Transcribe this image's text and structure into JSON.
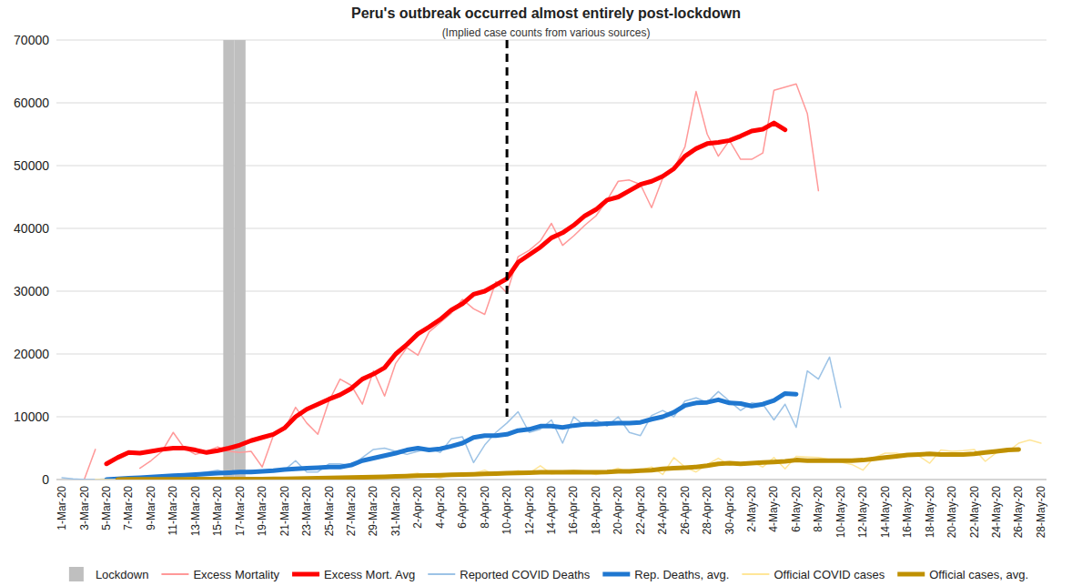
{
  "chart_data": {
    "type": "line",
    "title": "Peru's outbreak occurred almost entirely post-lockdown",
    "subtitle": "(Implied case counts from various sources)",
    "categories": [
      "1-Mar-20",
      null,
      "3-Mar-20",
      null,
      "5-Mar-20",
      null,
      "7-Mar-20",
      null,
      "9-Mar-20",
      null,
      "11-Mar-20",
      null,
      "13-Mar-20",
      null,
      "15-Mar-20",
      null,
      "17-Mar-20",
      null,
      "19-Mar-20",
      null,
      "21-Mar-20",
      null,
      "23-Mar-20",
      null,
      "25-Mar-20",
      null,
      "27-Mar-20",
      null,
      "29-Mar-20",
      null,
      "31-Mar-20",
      null,
      "2-Apr-20",
      null,
      "4-Apr-20",
      null,
      "6-Apr-20",
      null,
      "8-Apr-20",
      null,
      "10-Apr-20",
      null,
      "12-Apr-20",
      null,
      "14-Apr-20",
      null,
      "16-Apr-20",
      null,
      "18-Apr-20",
      null,
      "20-Apr-20",
      null,
      "22-Apr-20",
      null,
      "24-Apr-20",
      null,
      "26-Apr-20",
      null,
      "28-Apr-20",
      null,
      "30-Apr-20",
      null,
      "2-May-20",
      null,
      "4-May-20",
      null,
      "6-May-20",
      null,
      "8-May-20",
      null,
      "10-May-20",
      null,
      "12-May-20",
      null,
      "14-May-20",
      null,
      "16-May-20",
      null,
      "18-May-20",
      null,
      "20-May-20",
      null,
      "22-May-20",
      null,
      "24-May-20",
      null,
      "26-May-20",
      null,
      "28-May-20"
    ],
    "series": [
      {
        "name": "Lockdown",
        "type": "bar",
        "color": "#bfbfbf",
        "values": [
          null,
          null,
          null,
          null,
          null,
          null,
          null,
          null,
          null,
          null,
          null,
          null,
          null,
          null,
          null,
          70000,
          70000,
          null,
          null,
          null,
          null,
          null,
          null,
          null,
          null,
          null,
          null,
          null,
          null,
          null,
          null,
          null,
          null,
          null,
          null,
          null,
          null,
          null,
          null,
          null,
          null,
          null,
          null,
          null,
          null,
          null,
          null,
          null,
          null,
          null,
          null,
          null,
          null,
          null,
          null,
          null,
          null,
          null,
          null,
          null,
          null,
          null,
          null,
          null,
          null,
          null,
          null,
          null,
          null,
          null,
          null,
          null,
          null,
          null,
          null,
          null,
          null,
          null,
          null,
          null,
          null,
          null,
          null,
          null,
          null,
          null,
          null,
          null,
          null
        ]
      },
      {
        "name": "Excess Mortality",
        "type": "line",
        "color": "#ff9999",
        "values": [
          null,
          null,
          0,
          4800,
          null,
          null,
          null,
          1800,
          3000,
          4500,
          7500,
          5000,
          4000,
          4500,
          5200,
          4500,
          4300,
          4500,
          2000,
          7000,
          8000,
          11500,
          9000,
          7200,
          12500,
          16000,
          15000,
          12000,
          17300,
          13300,
          18500,
          21000,
          19800,
          23500,
          25000,
          26500,
          28700,
          27200,
          26300,
          31500,
          29700,
          35500,
          36500,
          38000,
          40800,
          37300,
          38800,
          40500,
          42000,
          44500,
          47500,
          47700,
          47000,
          43300,
          48000,
          49500,
          53000,
          61800,
          55000,
          51500,
          54000,
          51000,
          51000,
          52000,
          62000,
          62500,
          63000,
          58300,
          46000,
          null,
          null,
          null,
          null,
          null,
          null,
          null,
          null,
          null,
          null,
          null,
          null,
          null,
          null,
          null,
          null,
          null,
          null,
          null,
          null
        ]
      },
      {
        "name": "Excess Mort. Avg",
        "type": "line",
        "color": "#ff0000",
        "values": [
          null,
          null,
          null,
          null,
          2500,
          3500,
          4300,
          4200,
          4500,
          4800,
          5000,
          5000,
          4700,
          4300,
          4600,
          5000,
          5500,
          6200,
          6700,
          7200,
          8200,
          10000,
          11200,
          12000,
          12800,
          13500,
          14500,
          16000,
          16800,
          17800,
          20000,
          21500,
          23200,
          24300,
          25500,
          27000,
          28000,
          29500,
          30000,
          31000,
          32000,
          34600,
          35800,
          37000,
          38500,
          39300,
          40500,
          42000,
          43000,
          44500,
          45000,
          46000,
          47000,
          47500,
          48300,
          49500,
          51500,
          52700,
          53500,
          53700,
          54000,
          54700,
          55500,
          55800,
          56800,
          55700,
          null,
          null,
          null,
          null,
          null,
          null,
          null,
          null,
          null,
          null,
          null,
          null,
          null,
          null,
          null,
          null,
          null,
          null,
          null,
          null,
          null,
          null,
          null
        ]
      },
      {
        "name": "Reported COVID Deaths",
        "type": "line",
        "color": "#9dc3e6",
        "values": [
          300,
          100,
          0,
          0,
          100,
          200,
          300,
          400,
          500,
          500,
          600,
          800,
          900,
          1200,
          1500,
          1000,
          1200,
          1500,
          1300,
          1500,
          1500,
          3000,
          1200,
          1200,
          2500,
          2500,
          2200,
          3500,
          4800,
          5000,
          4500,
          4000,
          4500,
          5000,
          4300,
          6500,
          6800,
          2700,
          5500,
          7500,
          9000,
          10800,
          7500,
          8000,
          9500,
          5800,
          10000,
          8500,
          9500,
          8500,
          10000,
          7500,
          7000,
          10200,
          11000,
          10000,
          12500,
          13000,
          12300,
          14000,
          12500,
          11000,
          12200,
          12000,
          9500,
          12000,
          8300,
          17300,
          16000,
          19500,
          11500,
          null,
          null,
          null,
          null,
          null,
          null,
          null,
          null,
          null,
          null,
          null,
          null,
          null,
          null,
          null,
          null,
          null,
          null
        ]
      },
      {
        "name": "Rep. Deaths, avg.",
        "type": "line",
        "color": "#1f77d0",
        "values": [
          null,
          null,
          null,
          null,
          0,
          100,
          200,
          300,
          400,
          500,
          600,
          700,
          800,
          900,
          1000,
          1100,
          1200,
          1200,
          1300,
          1400,
          1600,
          1700,
          1800,
          1900,
          2000,
          2000,
          2300,
          3000,
          3400,
          3800,
          4200,
          4700,
          5000,
          4700,
          4900,
          5300,
          5800,
          6700,
          7000,
          7000,
          7200,
          7800,
          8000,
          8500,
          8500,
          8300,
          8600,
          8800,
          8800,
          8900,
          9000,
          9000,
          9100,
          9600,
          10000,
          10700,
          11800,
          12200,
          12300,
          12700,
          12200,
          12100,
          11700,
          12000,
          12600,
          13700,
          13600,
          null,
          null,
          null,
          null,
          null,
          null,
          null,
          null,
          null,
          null,
          null,
          null,
          null,
          null,
          null,
          null,
          null,
          null,
          null,
          null,
          null,
          null
        ]
      },
      {
        "name": "Official COVID cases",
        "type": "line",
        "color": "#ffe699",
        "values": [
          null,
          null,
          null,
          0,
          0,
          10,
          20,
          20,
          30,
          40,
          60,
          80,
          50,
          40,
          50,
          80,
          60,
          90,
          60,
          100,
          130,
          100,
          160,
          200,
          250,
          350,
          200,
          450,
          400,
          300,
          600,
          800,
          1000,
          500,
          250,
          800,
          900,
          1000,
          1500,
          700,
          1000,
          1400,
          1000,
          2200,
          900,
          1100,
          1000,
          1200,
          800,
          1200,
          1800,
          1100,
          1500,
          2000,
          800,
          3500,
          2000,
          1200,
          2400,
          3400,
          2300,
          2600,
          2800,
          2000,
          3500,
          1700,
          3700,
          3600,
          3500,
          3200,
          2800,
          2400,
          1500,
          3500,
          4200,
          4200,
          3800,
          3800,
          2600,
          4700,
          4500,
          4600,
          4800,
          2900,
          4300,
          4400,
          5800,
          6300,
          5800
        ]
      },
      {
        "name": "Official cases, avg.",
        "type": "line",
        "color": "#bf9000",
        "values": [
          null,
          null,
          null,
          null,
          null,
          0,
          20,
          20,
          30,
          40,
          50,
          50,
          60,
          60,
          60,
          70,
          70,
          80,
          90,
          100,
          120,
          140,
          170,
          200,
          240,
          280,
          320,
          360,
          400,
          450,
          500,
          550,
          600,
          650,
          700,
          750,
          800,
          850,
          900,
          950,
          1000,
          1050,
          1100,
          1150,
          1150,
          1150,
          1200,
          1150,
          1150,
          1200,
          1300,
          1300,
          1400,
          1500,
          1700,
          1800,
          1900,
          2000,
          2200,
          2500,
          2600,
          2500,
          2600,
          2700,
          2800,
          2900,
          3100,
          3000,
          3000,
          3000,
          3000,
          3000,
          3100,
          3300,
          3500,
          3700,
          3900,
          4000,
          4100,
          4000,
          4000,
          4000,
          4100,
          4300,
          4500,
          4700,
          4800,
          null,
          null
        ]
      }
    ],
    "annotations": [
      {
        "type": "vline",
        "x": "10-Apr-20",
        "from": 10000,
        "to": 70000,
        "line_style": "dashed"
      }
    ],
    "ylim": [
      0,
      70000
    ],
    "yticks": [
      0,
      10000,
      20000,
      30000,
      40000,
      50000,
      60000,
      70000
    ],
    "grid": true,
    "legend": "bottom"
  }
}
